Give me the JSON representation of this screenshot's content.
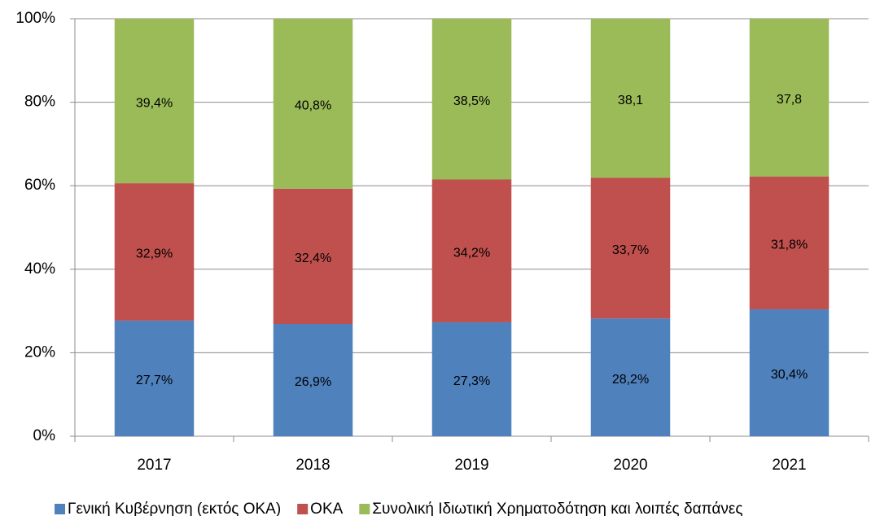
{
  "chart_data": {
    "type": "stacked_bar",
    "categories": [
      "2017",
      "2018",
      "2019",
      "2020",
      "2021"
    ],
    "series": [
      {
        "name": "Γενική Κυβέρνηση (εκτός ΟΚΑ)",
        "color": "#4f81bd",
        "values": [
          27.7,
          26.9,
          27.3,
          28.2,
          30.4
        ],
        "value_labels": [
          "27,7%",
          "26,9%",
          "27,3%",
          "28,2%",
          "30,4%"
        ]
      },
      {
        "name": "ΟΚΑ",
        "color": "#c0504d",
        "values": [
          32.9,
          32.4,
          34.2,
          33.7,
          31.8
        ],
        "value_labels": [
          "32,9%",
          "32,4%",
          "34,2%",
          "33,7%",
          "31,8%"
        ]
      },
      {
        "name": "Συνολική Ιδιωτική Χρηματοδότηση και λοιπές δαπάνες",
        "color": "#9bbb59",
        "values": [
          39.4,
          40.8,
          38.5,
          38.1,
          37.8
        ],
        "value_labels": [
          "39,4%",
          "40,8%",
          "38,5%",
          "38,1",
          "37,8"
        ]
      }
    ],
    "ylim": [
      0,
      100
    ],
    "yticks": [
      {
        "value": 0,
        "label": "0%"
      },
      {
        "value": 20,
        "label": "20%"
      },
      {
        "value": 40,
        "label": "40%"
      },
      {
        "value": 60,
        "label": "60%"
      },
      {
        "value": 80,
        "label": "80%"
      },
      {
        "value": 100,
        "label": "100%"
      }
    ],
    "grid": true,
    "legend": "bottom"
  }
}
